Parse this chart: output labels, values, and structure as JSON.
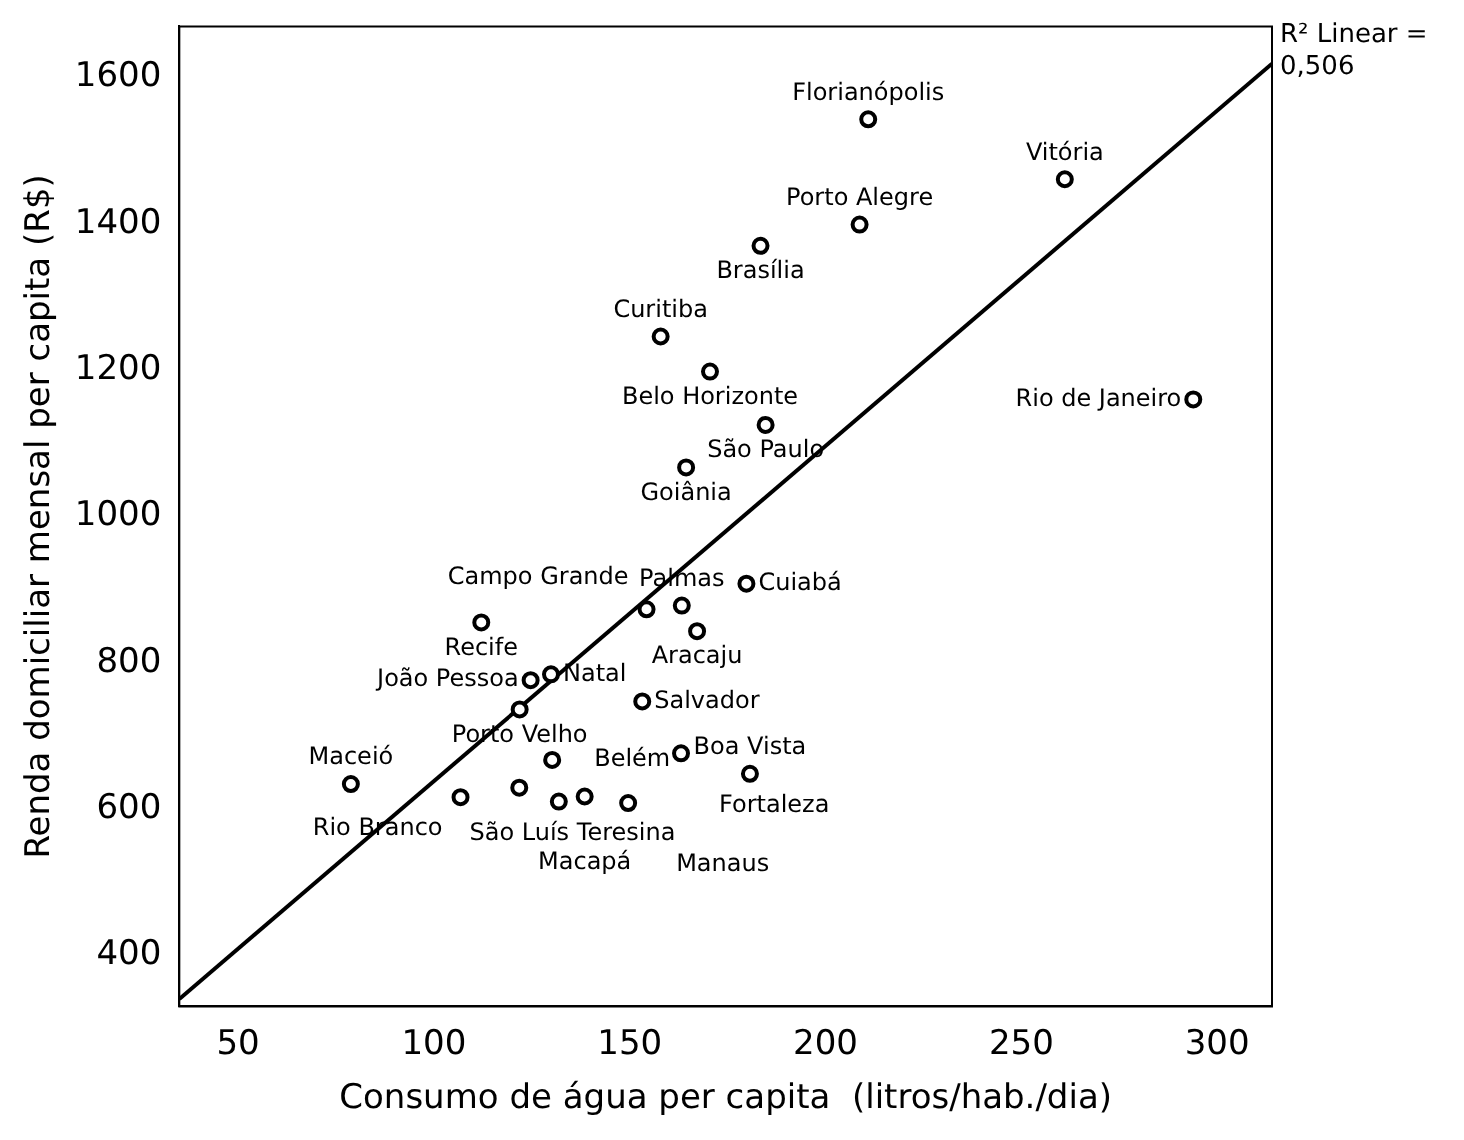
{
  "chart_data": {
    "type": "scatter",
    "xlabel": "Consumo de água per capita  (litros/hab./dia)",
    "ylabel": "Renda domiciliar mensal per capita (R$)",
    "xlim": [
      35,
      314
    ],
    "ylim": [
      330,
      1670
    ],
    "xticks": [
      50,
      100,
      150,
      200,
      250,
      300
    ],
    "yticks": [
      400,
      600,
      800,
      1000,
      1200,
      1400,
      1600
    ],
    "grid": false,
    "legend": false,
    "series": [
      {
        "marker": "circle",
        "color": "#000000",
        "x": [
          210.9,
          261.1,
          208.7,
          183.4,
          157.9,
          170.5,
          184.7,
          164.4,
          293.9,
          179.8,
          154.3,
          163.3,
          167.2,
          112.1,
          129.9,
          124.7,
          121.9,
          153.2,
          130.2,
          163.1,
          180.7,
          78.8,
          121.8,
          106.8,
          131.9,
          138.5,
          149.6
        ],
        "values": [
          1543,
          1461,
          1399,
          1370,
          1246,
          1198,
          1125,
          1067,
          1160,
          908,
          873,
          878,
          843,
          855,
          784,
          776,
          736,
          747,
          667,
          676,
          648,
          634,
          629,
          616,
          610,
          617,
          608
        ]
      },
      {
        "type": "line",
        "marker": "none",
        "color": "#000000",
        "x": [
          35,
          314
        ],
        "values": [
          340,
          1619
        ]
      }
    ],
    "annotations": [
      {
        "text": "Florianópolis",
        "x": 210.9,
        "y": 1543
      },
      {
        "text": "Vitória",
        "x": 261.1,
        "y": 1461
      },
      {
        "text": "Porto Alegre",
        "x": 208.7,
        "y": 1399
      },
      {
        "text": "Brasília",
        "x": 183.4,
        "y": 1370
      },
      {
        "text": "Curitiba",
        "x": 157.9,
        "y": 1246
      },
      {
        "text": "Belo Horizonte",
        "x": 170.5,
        "y": 1198
      },
      {
        "text": "São Paulo",
        "x": 184.7,
        "y": 1125
      },
      {
        "text": "Goiânia",
        "x": 164.4,
        "y": 1067
      },
      {
        "text": "Rio de Janeiro",
        "x": 293.9,
        "y": 1160
      },
      {
        "text": "Cuiabá",
        "x": 179.8,
        "y": 908
      },
      {
        "text": "Campo Grande",
        "x": 154.3,
        "y": 873
      },
      {
        "text": "Palmas",
        "x": 163.3,
        "y": 878
      },
      {
        "text": "Aracaju",
        "x": 167.2,
        "y": 843
      },
      {
        "text": "Recife",
        "x": 112.1,
        "y": 855
      },
      {
        "text": "Natal",
        "x": 129.9,
        "y": 784
      },
      {
        "text": "João Pessoa",
        "x": 124.7,
        "y": 776
      },
      {
        "text": "Porto Velho",
        "x": 121.9,
        "y": 736
      },
      {
        "text": "Salvador",
        "x": 153.2,
        "y": 747
      },
      {
        "text": "Belém",
        "x": 130.2,
        "y": 667
      },
      {
        "text": "Fortaleza",
        "x": 163.1,
        "y": 676
      },
      {
        "text": "Boa Vista",
        "x": 180.7,
        "y": 648
      },
      {
        "text": "Maceió",
        "x": 78.8,
        "y": 634
      },
      {
        "text": "São Luís",
        "x": 121.8,
        "y": 629
      },
      {
        "text": "Rio Branco",
        "x": 106.8,
        "y": 616
      },
      {
        "text": "Teresina",
        "x": 131.9,
        "y": 610
      },
      {
        "text": "Macapá",
        "x": 138.5,
        "y": 617
      },
      {
        "text": "Manaus",
        "x": 149.6,
        "y": 608
      },
      "R² Linear = 0,506"
    ]
  }
}
